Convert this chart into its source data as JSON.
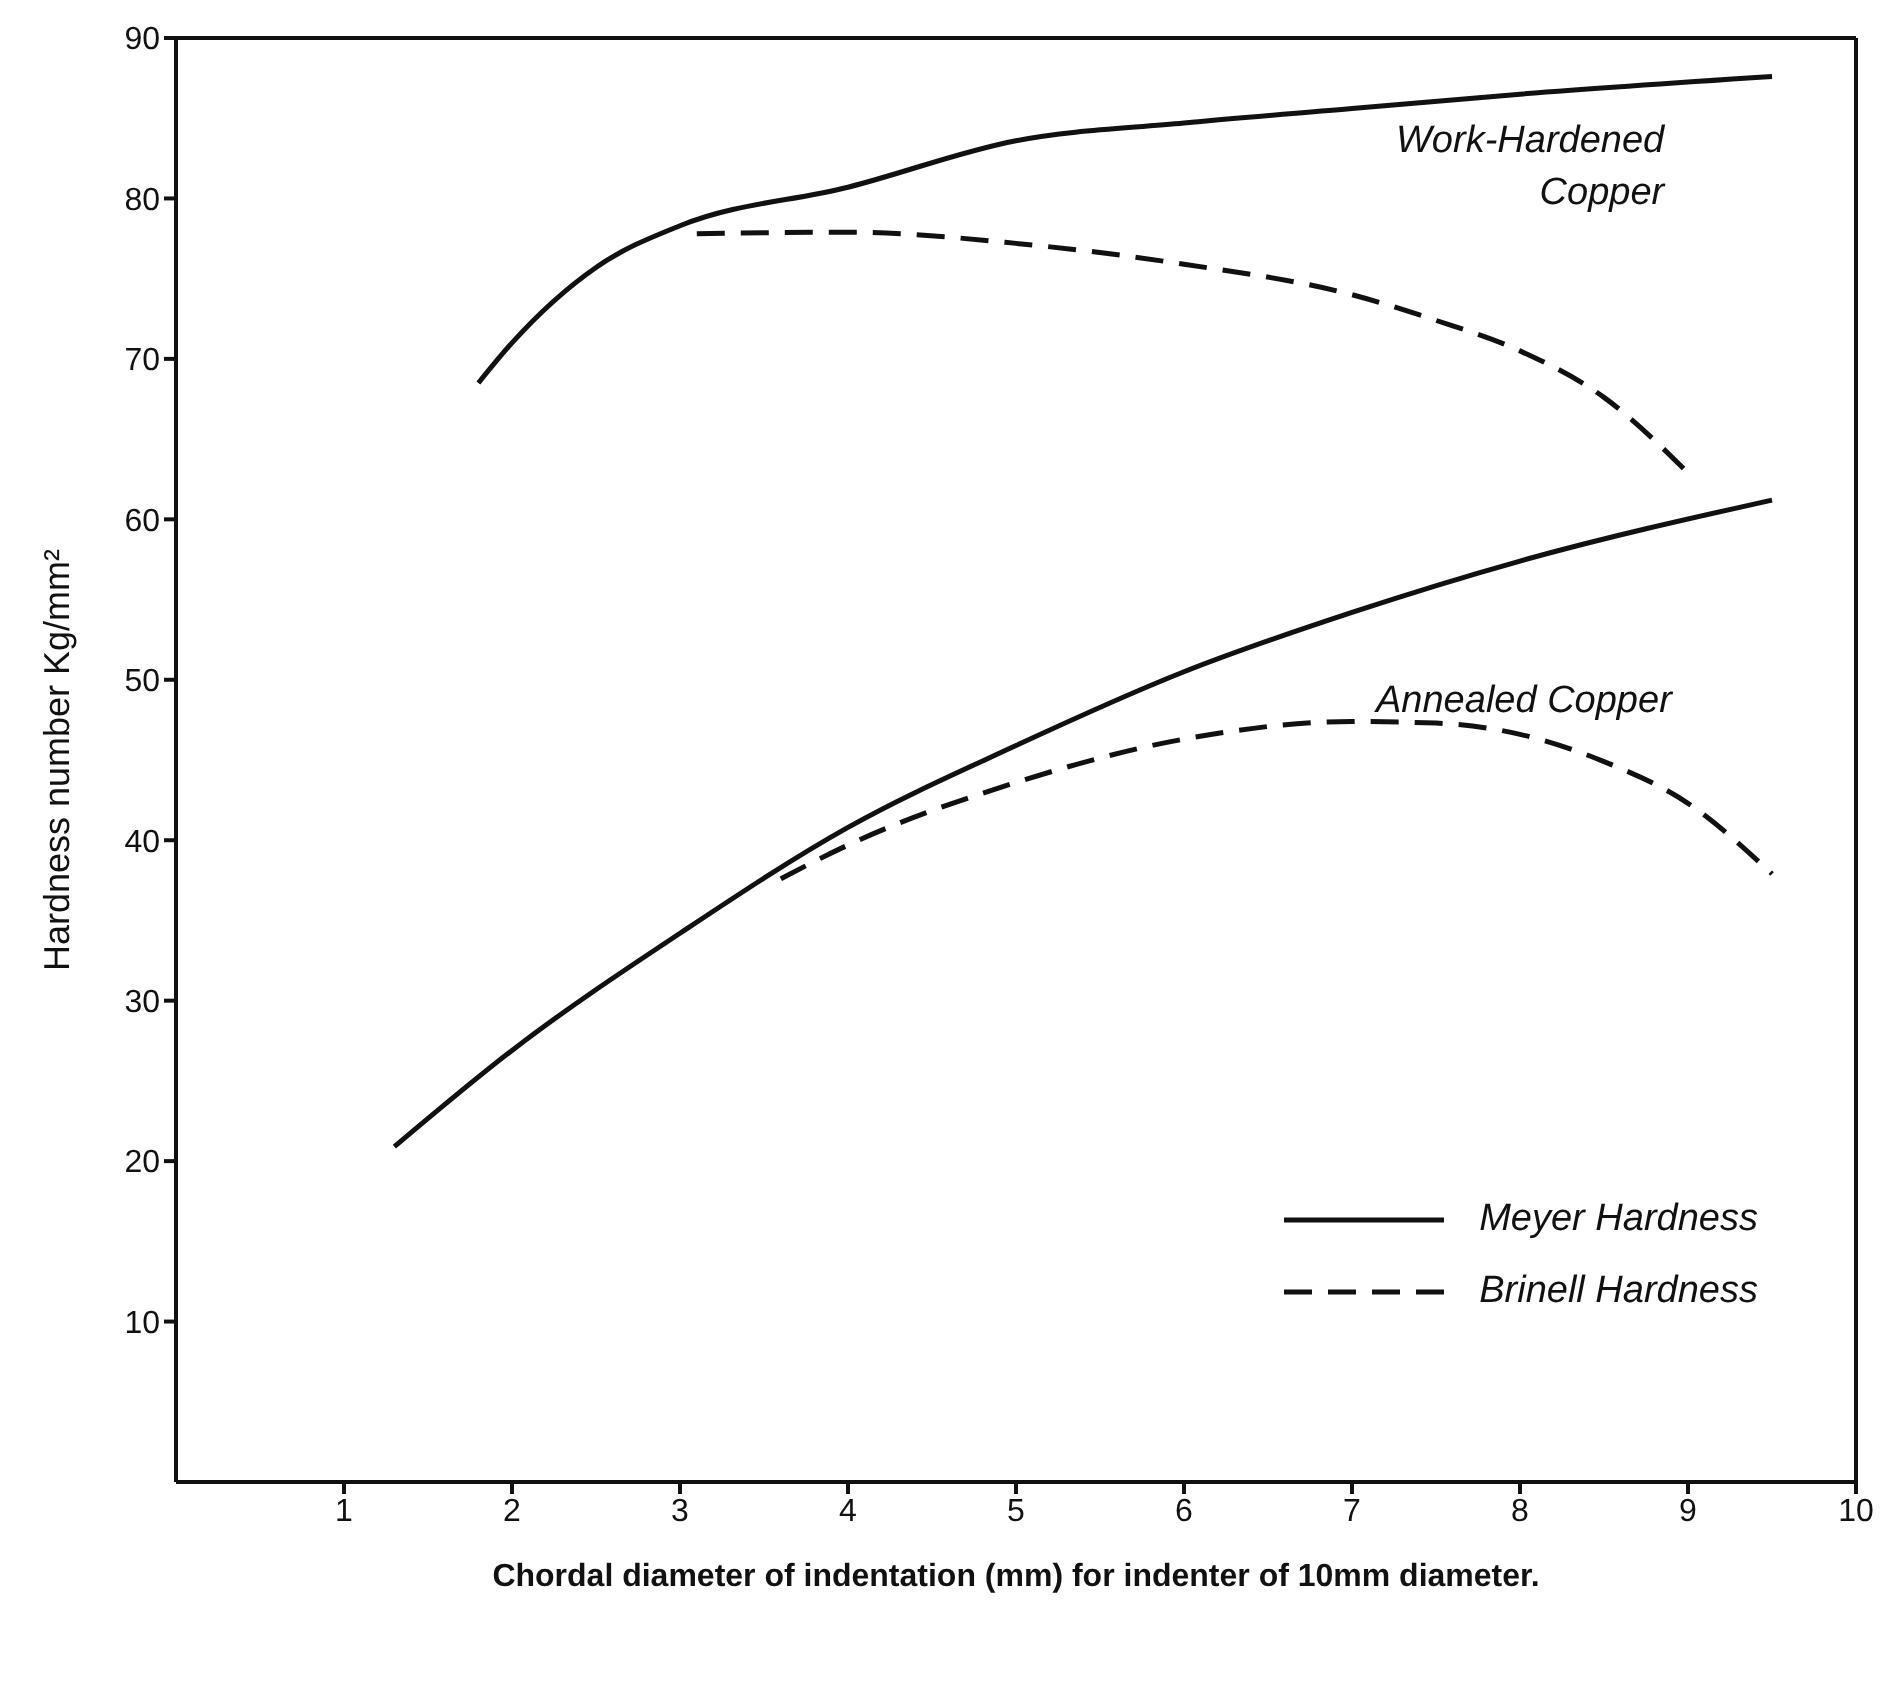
{
  "chart_data": {
    "type": "line",
    "xlabel": "Chordal diameter of indentation (mm) for indenter of 10mm diameter.",
    "ylabel": "Hardness number  Kg/mm²",
    "xlim": [
      0,
      10
    ],
    "ylim": [
      0,
      90
    ],
    "xticks": [
      1,
      2,
      3,
      4,
      5,
      6,
      7,
      8,
      9,
      10
    ],
    "yticks": [
      10,
      20,
      30,
      40,
      50,
      60,
      70,
      80,
      90
    ],
    "legend": "bottom right",
    "marker": "none",
    "series": [
      {
        "name": "Meyer Hardness",
        "color": "#111111",
        "line_style": "solid",
        "x": [
          1.8,
          2,
          2.5,
          3,
          4,
          5,
          6,
          7,
          8,
          9.5
        ],
        "values": [
          68.5,
          71,
          75.7,
          78.3,
          80.7,
          83.6,
          84.7,
          85.6,
          86.5,
          87.6
        ]
      },
      {
        "name": "Brinell Hardness",
        "color": "#111111",
        "line_style": "dashed",
        "x": [
          3.1,
          4,
          5,
          6,
          7,
          7.5,
          8,
          8.5,
          9
        ],
        "values": [
          77.8,
          77.9,
          77.2,
          75.9,
          74,
          72.4,
          70.5,
          67.6,
          62.9
        ]
      },
      {
        "color": "#111111",
        "line_style": "solid",
        "x": [
          1.3,
          2,
          3,
          4,
          5,
          6,
          7,
          8,
          9.5
        ],
        "values": [
          20.9,
          26.9,
          34.2,
          40.8,
          45.9,
          50.5,
          54.2,
          57.4,
          61.2
        ]
      },
      {
        "color": "#111111",
        "line_style": "dashed",
        "x": [
          3.6,
          4,
          5,
          6,
          7,
          7.5,
          8,
          8.5,
          9,
          9.5
        ],
        "values": [
          37.6,
          39.7,
          43.6,
          46.3,
          47.4,
          47.3,
          46.6,
          44.9,
          42.3,
          37.9
        ]
      }
    ],
    "annotations": [
      "Work-Hardened\nCopper",
      "Annealed Copper"
    ]
  }
}
